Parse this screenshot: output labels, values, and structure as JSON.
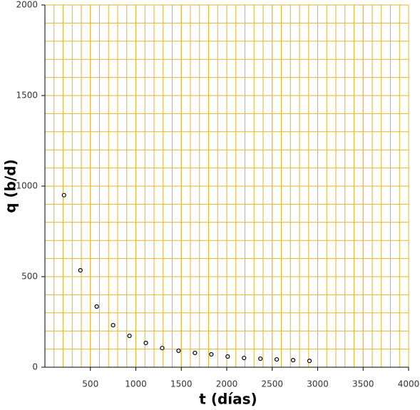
{
  "chart_data": {
    "type": "scatter",
    "x_label": "t (días)",
    "y_label": "q (b/d)",
    "x": [
      210,
      390,
      570,
      750,
      930,
      1110,
      1290,
      1470,
      1650,
      1830,
      2010,
      2190,
      2370,
      2550,
      2730,
      2910
    ],
    "values": [
      950,
      535,
      335,
      232,
      173,
      134,
      106,
      91,
      79,
      71,
      59,
      51,
      47,
      43,
      39,
      35
    ],
    "color": "#000000",
    "xlim": [
      0,
      4000
    ],
    "xticks": [
      500,
      1000,
      1500,
      2000,
      2500,
      3000,
      3500,
      4000
    ],
    "ylim": [
      0,
      2000
    ],
    "yticks": [
      0,
      500,
      1000,
      1500,
      2000
    ],
    "grid": true
  }
}
